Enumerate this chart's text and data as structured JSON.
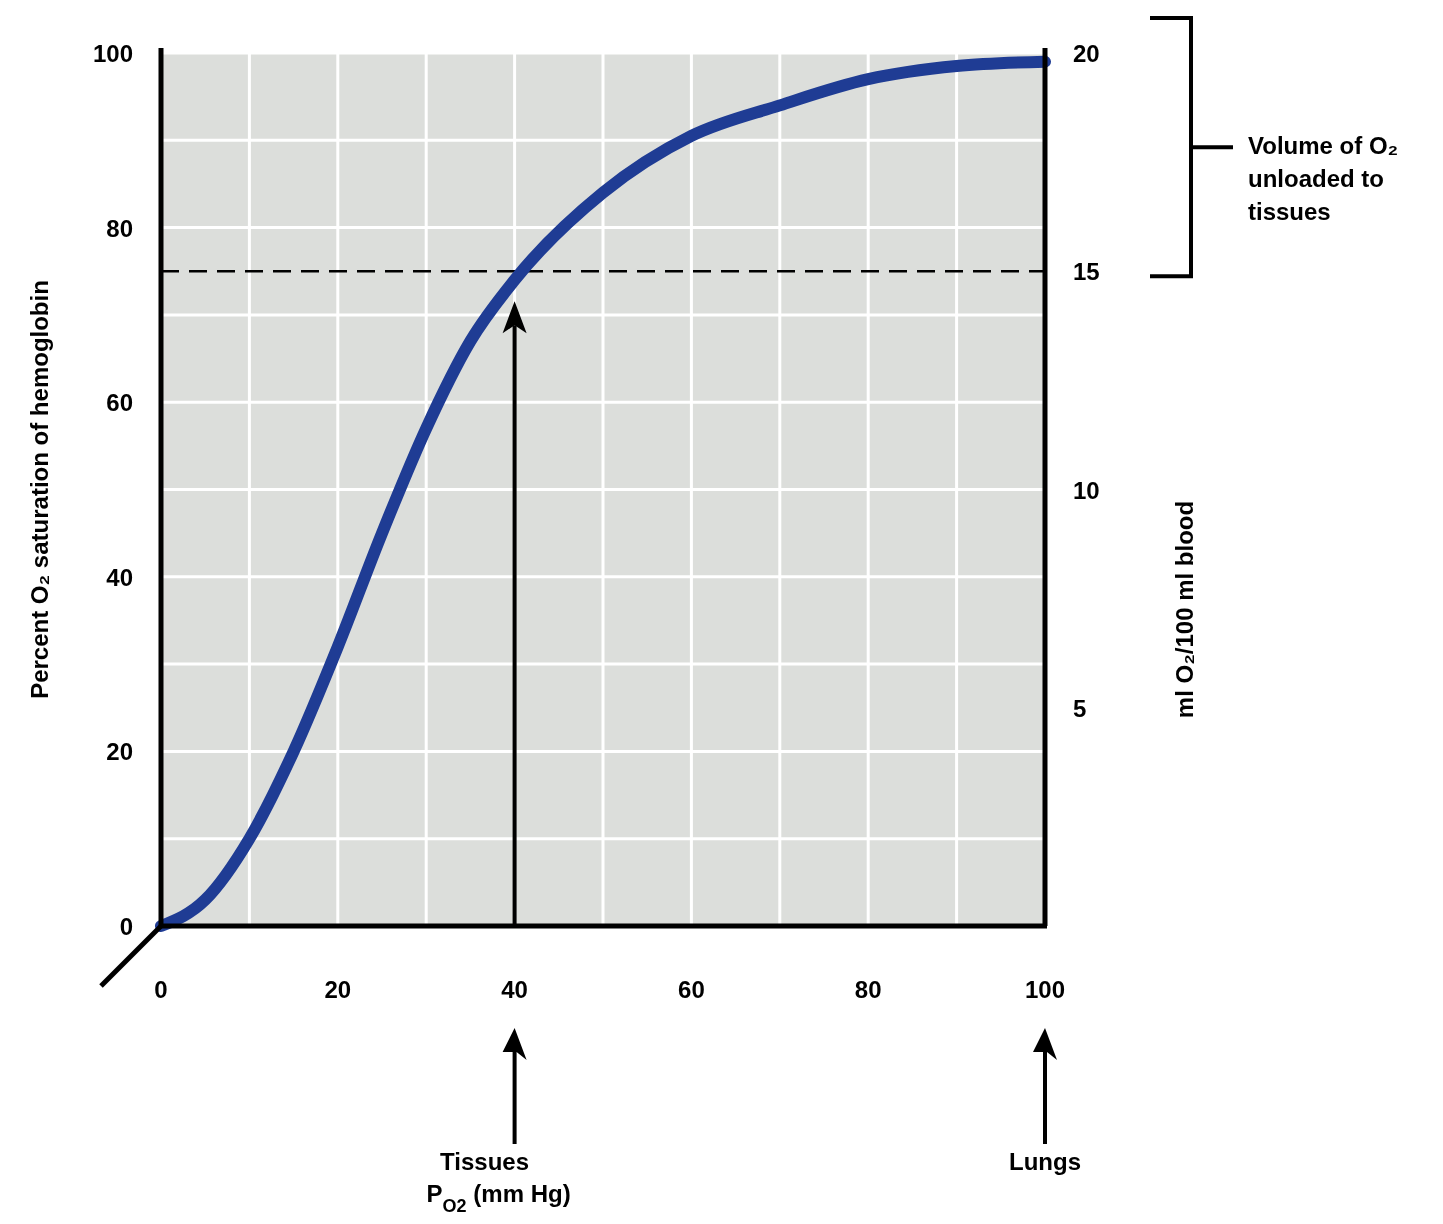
{
  "chart_data": {
    "type": "line",
    "ylabel": "Percent O₂ saturation of hemoglobin",
    "y2label": "ml O₂/100 ml blood",
    "x": [
      0,
      5,
      10,
      15,
      20,
      25,
      30,
      35,
      40,
      50,
      60,
      70,
      80,
      90,
      100
    ],
    "series": [
      {
        "color": "#1f3c94",
        "values": [
          0,
          3,
          10,
          20,
          32,
          45,
          57,
          67,
          74,
          84,
          90.5,
          94,
          97,
          98.5,
          99
        ]
      }
    ],
    "xlim": [
      0,
      100
    ],
    "ylim": [
      0,
      100
    ],
    "y2lim": [
      0,
      20
    ],
    "xticks": [
      0,
      {
        "value": 10,
        "label": null
      },
      20,
      {
        "value": 30,
        "label": null
      },
      40,
      {
        "value": 50,
        "label": null
      },
      60,
      {
        "value": 70,
        "label": null
      },
      80,
      {
        "value": 90,
        "label": null
      },
      100
    ],
    "yticks": [
      0,
      {
        "value": 10,
        "label": null
      },
      20,
      {
        "value": 30,
        "label": null
      },
      40,
      {
        "value": 50,
        "label": null
      },
      60,
      {
        "value": 70,
        "label": null
      },
      80,
      {
        "value": 90,
        "label": null
      },
      100
    ],
    "y2ticks": [
      5,
      10,
      15,
      20
    ],
    "grid": true,
    "marker": "none",
    "line_style": "solid",
    "ref_lines": [
      {
        "axis": "y2",
        "value": 15,
        "color": "#000000",
        "line_style": "dashed"
      },
      {
        "axis": "x",
        "value": 40,
        "label": "Tissues",
        "color": "#000000",
        "line_style": "solid"
      }
    ],
    "annotations": [
      "P$_{O2}$ (mm Hg)",
      "Lungs",
      "Volume of O₂ unloaded to tissues"
    ]
  }
}
